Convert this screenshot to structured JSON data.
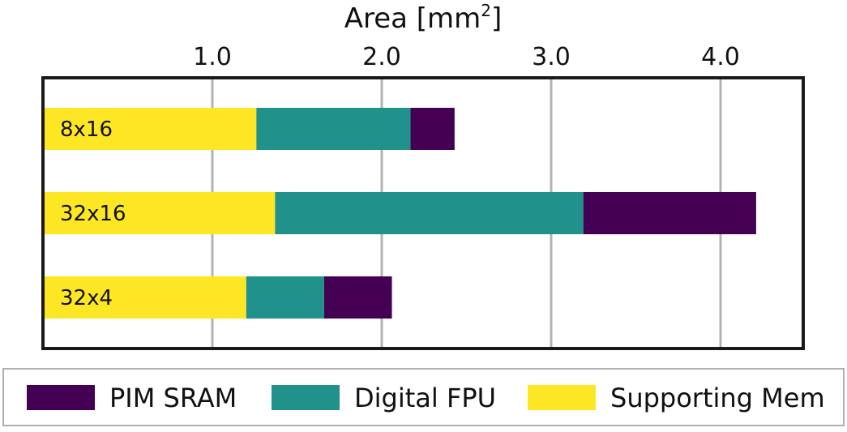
{
  "chart_data": {
    "type": "bar",
    "orientation": "horizontal",
    "stacked": true,
    "title": "",
    "xlabel": "Area [mm",
    "xlabel_superscript": "2",
    "xlabel_close": "]",
    "ylabel": "",
    "xlim": [
      0,
      4.5
    ],
    "xticks": [
      1.0,
      2.0,
      3.0,
      4.0
    ],
    "xtick_labels": [
      "1.0",
      "2.0",
      "3.0",
      "4.0"
    ],
    "x_axis_position": "top",
    "grid": true,
    "legend_position": "bottom",
    "categories": [
      "8x16",
      "32x16",
      "32x4"
    ],
    "series": [
      {
        "name": "Supporting Mem",
        "color": "#fde725",
        "values": [
          1.26,
          1.37,
          1.2
        ]
      },
      {
        "name": "Digital FPU",
        "color": "#21918c",
        "values": [
          0.91,
          1.82,
          0.46
        ]
      },
      {
        "name": "PIM SRAM",
        "color": "#440154",
        "values": [
          0.26,
          1.02,
          0.4
        ]
      }
    ],
    "legend_order": [
      "PIM SRAM",
      "Digital FPU",
      "Supporting Mem"
    ]
  }
}
